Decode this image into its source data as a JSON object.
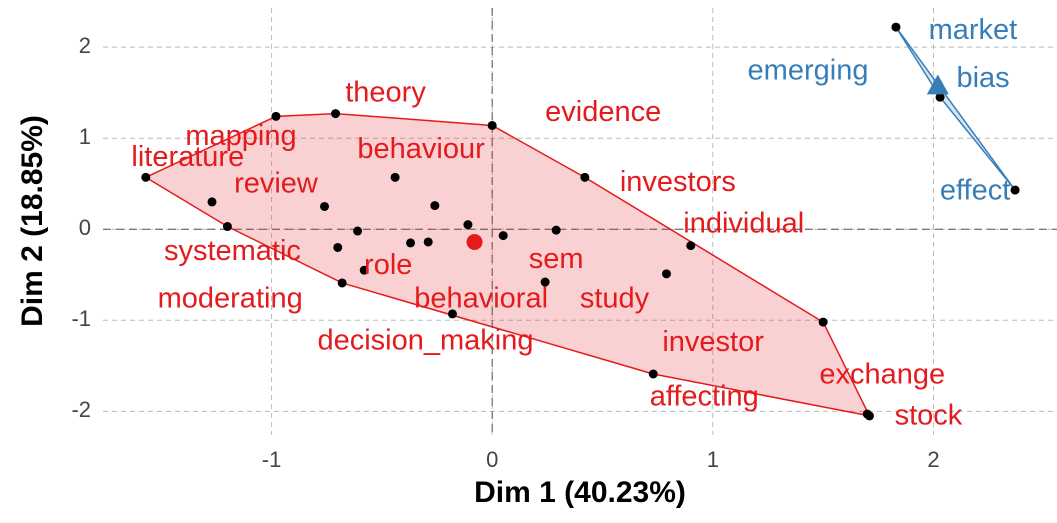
{
  "chart_data": {
    "type": "scatter",
    "xlabel": "Dim 1 (40.23%)",
    "ylabel": "Dim 2 (18.85%)",
    "xlim": [
      -1.764,
      2.56
    ],
    "ylim": [
      -2.26,
      2.43
    ],
    "xticks": [
      -1,
      0,
      1,
      2
    ],
    "yticks": [
      -2,
      -1,
      0,
      1,
      2
    ],
    "grid": true,
    "series": [
      {
        "color": "#e41a1c",
        "x": [
          -0.71,
          -0.98,
          0,
          -1.57,
          -0.44,
          0.42,
          -1.27,
          -0.76,
          -0.26,
          -0.11,
          -1.2,
          -0.61,
          0.29,
          0.05,
          -0.7,
          -0.37,
          -0.29,
          0.9,
          -0.58,
          0.79,
          -0.68,
          0.24,
          -0.18,
          1.5,
          0.73,
          1.71,
          1.7
        ],
        "y": [
          1.27,
          1.24,
          1.14,
          0.57,
          0.57,
          0.57,
          0.3,
          0.25,
          0.26,
          0.05,
          0.03,
          -0.02,
          -0.01,
          -0.07,
          -0.2,
          -0.15,
          -0.14,
          -0.18,
          -0.45,
          -0.49,
          -0.59,
          -0.58,
          -0.93,
          -1.02,
          -1.59,
          -2.05,
          -2.03
        ],
        "labels": [
          "theory",
          "mapping",
          "evidence",
          "literature",
          "behaviour",
          "investors",
          "review",
          null,
          null,
          null,
          "systematic",
          null,
          "sem",
          null,
          null,
          null,
          null,
          "individual",
          "role",
          "study",
          "moderating",
          "behavioral",
          "decision_making",
          "investor",
          "affecting",
          "stock",
          "exchange"
        ],
        "center_x": -0.08,
        "center_y": -0.14
      },
      {
        "color": "#377eb8",
        "x": [
          1.83,
          2.03,
          2.37
        ],
        "y": [
          2.22,
          1.45,
          0.43
        ],
        "labels": [
          "market",
          "bias",
          "effect"
        ],
        "center_x": 2.02,
        "center_y": 1.58,
        "extra_label": "emerging"
      }
    ]
  }
}
